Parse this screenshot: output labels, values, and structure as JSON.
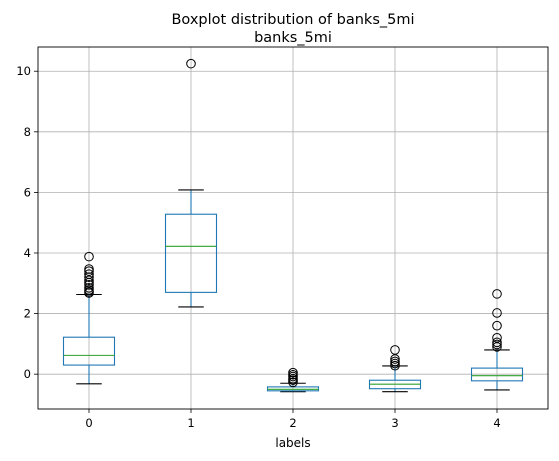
{
  "chart_data": {
    "type": "boxplot",
    "suptitle": "Boxplot distribution of banks_5mi",
    "title": "banks_5mi",
    "xlabel": "labels",
    "ylabel": "",
    "categories": [
      "0",
      "1",
      "2",
      "3",
      "4"
    ],
    "ylim": [
      -1.15,
      10.8
    ],
    "yticks": [
      0,
      2,
      4,
      6,
      8,
      10
    ],
    "grid": true,
    "colors": {
      "box": "#1f77b4",
      "median": "#2ca02c",
      "whisker_cap": "#000000",
      "grid": "#b0b0b0"
    },
    "boxes": [
      {
        "label": "0",
        "whislo": -0.32,
        "q1": 0.3,
        "med": 0.62,
        "q3": 1.22,
        "whishi": 2.63,
        "fliers": [
          2.68,
          2.72,
          2.78,
          2.85,
          2.95,
          3.02,
          3.1,
          3.2,
          3.3,
          3.4,
          3.47,
          3.88
        ]
      },
      {
        "label": "1",
        "whislo": 2.22,
        "q1": 2.7,
        "med": 4.22,
        "q3": 5.28,
        "whishi": 6.08,
        "fliers": [
          10.25
        ]
      },
      {
        "label": "2",
        "whislo": -0.58,
        "q1": -0.55,
        "med": -0.5,
        "q3": -0.42,
        "whishi": -0.3,
        "fliers": [
          -0.27,
          -0.2,
          -0.15,
          -0.08,
          -0.02,
          0.05
        ]
      },
      {
        "label": "3",
        "whislo": -0.58,
        "q1": -0.48,
        "med": -0.33,
        "q3": -0.2,
        "whishi": 0.27,
        "fliers": [
          0.28,
          0.35,
          0.42,
          0.5,
          0.8
        ]
      },
      {
        "label": "4",
        "whislo": -0.52,
        "q1": -0.22,
        "med": -0.05,
        "q3": 0.2,
        "whishi": 0.8,
        "fliers": [
          0.9,
          0.98,
          1.05,
          1.2,
          1.6,
          2.02,
          2.65
        ]
      }
    ]
  }
}
